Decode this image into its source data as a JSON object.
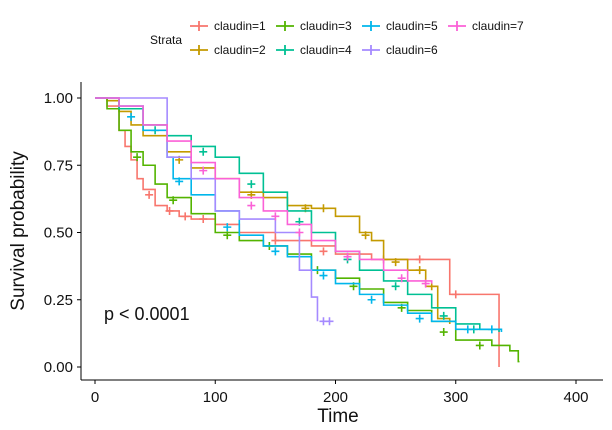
{
  "chart_data": {
    "type": "line",
    "subtype": "kaplan-meier",
    "title": "",
    "xlabel": "Time",
    "ylabel": "Survival probability",
    "xlim": [
      0,
      400
    ],
    "ylim": [
      0,
      1
    ],
    "x_ticks": [
      "0",
      "100",
      "200",
      "300",
      "400"
    ],
    "y_ticks": [
      "0.00",
      "0.25",
      "0.50",
      "0.75",
      "1.00"
    ],
    "x_tick_values": [
      0,
      100,
      200,
      300,
      400
    ],
    "y_tick_values": [
      0,
      0.25,
      0.5,
      0.75,
      1.0
    ],
    "grid": false,
    "legend_title": "Strata",
    "legend_position": "top",
    "annotation": "p < 0.0001",
    "series": [
      {
        "name": "claudin=1",
        "color": "#F8766D",
        "x": [
          0,
          10,
          20,
          25,
          30,
          35,
          40,
          50,
          60,
          70,
          80,
          100,
          120,
          150,
          180,
          200,
          230,
          260,
          295,
          335,
          336
        ],
        "y": [
          1.0,
          0.97,
          0.88,
          0.82,
          0.77,
          0.7,
          0.66,
          0.6,
          0.58,
          0.56,
          0.55,
          0.53,
          0.5,
          0.47,
          0.45,
          0.42,
          0.4,
          0.4,
          0.27,
          0.27,
          0.0
        ],
        "censor_x": [
          45,
          62,
          75,
          90,
          150,
          190,
          240,
          270,
          300
        ],
        "censor_y": [
          0.64,
          0.58,
          0.56,
          0.55,
          0.47,
          0.43,
          0.4,
          0.4,
          0.27
        ]
      },
      {
        "name": "claudin=2",
        "color": "#C49A00",
        "x": [
          0,
          10,
          20,
          30,
          40,
          60,
          80,
          100,
          120,
          140,
          160,
          180,
          200,
          220,
          230,
          240,
          260,
          275,
          285,
          295
        ],
        "y": [
          1.0,
          0.99,
          0.95,
          0.9,
          0.86,
          0.8,
          0.74,
          0.7,
          0.65,
          0.63,
          0.6,
          0.59,
          0.56,
          0.5,
          0.47,
          0.4,
          0.36,
          0.3,
          0.18,
          0.16
        ],
        "censor_x": [
          70,
          130,
          175,
          190,
          225,
          250,
          270,
          280
        ],
        "censor_y": [
          0.77,
          0.64,
          0.59,
          0.59,
          0.49,
          0.39,
          0.36,
          0.3
        ]
      },
      {
        "name": "claudin=3",
        "color": "#53B400",
        "x": [
          0,
          10,
          20,
          30,
          40,
          50,
          60,
          80,
          100,
          120,
          140,
          160,
          180,
          200,
          220,
          240,
          260,
          280,
          300,
          330,
          345,
          352,
          353
        ],
        "y": [
          1.0,
          0.96,
          0.88,
          0.8,
          0.75,
          0.68,
          0.63,
          0.57,
          0.5,
          0.47,
          0.45,
          0.42,
          0.36,
          0.33,
          0.29,
          0.24,
          0.21,
          0.17,
          0.1,
          0.08,
          0.06,
          0.02,
          0.02
        ],
        "censor_x": [
          35,
          65,
          110,
          145,
          185,
          215,
          255,
          290,
          320
        ],
        "censor_y": [
          0.78,
          0.62,
          0.49,
          0.45,
          0.36,
          0.3,
          0.22,
          0.13,
          0.08
        ]
      },
      {
        "name": "claudin=4",
        "color": "#00C094",
        "x": [
          0,
          20,
          40,
          60,
          80,
          100,
          120,
          140,
          160,
          180,
          200,
          220,
          240,
          260,
          280,
          300,
          320,
          336
        ],
        "y": [
          1.0,
          0.96,
          0.9,
          0.86,
          0.82,
          0.78,
          0.72,
          0.65,
          0.58,
          0.5,
          0.43,
          0.36,
          0.32,
          0.27,
          0.22,
          0.16,
          0.14,
          0.13
        ],
        "censor_x": [
          50,
          90,
          130,
          170,
          210,
          250,
          290,
          315
        ],
        "censor_y": [
          0.88,
          0.8,
          0.68,
          0.54,
          0.4,
          0.3,
          0.19,
          0.14
        ]
      },
      {
        "name": "claudin=5",
        "color": "#00B6EB",
        "x": [
          0,
          20,
          40,
          60,
          65,
          80,
          100,
          120,
          140,
          160,
          180,
          200,
          220,
          240,
          260,
          280,
          300,
          320,
          335,
          338
        ],
        "y": [
          1.0,
          0.97,
          0.88,
          0.78,
          0.7,
          0.64,
          0.58,
          0.49,
          0.45,
          0.41,
          0.36,
          0.31,
          0.27,
          0.23,
          0.2,
          0.17,
          0.14,
          0.14,
          0.14,
          0.13
        ],
        "censor_x": [
          30,
          70,
          110,
          150,
          190,
          230,
          270,
          310,
          330
        ],
        "censor_y": [
          0.93,
          0.69,
          0.52,
          0.43,
          0.34,
          0.25,
          0.18,
          0.14,
          0.14
        ]
      },
      {
        "name": "claudin=6",
        "color": "#A58AFF",
        "x": [
          0,
          60,
          80,
          100,
          120,
          150,
          170,
          180,
          185
        ],
        "y": [
          1.0,
          0.78,
          0.7,
          0.58,
          0.55,
          0.5,
          0.36,
          0.26,
          0.17
        ],
        "censor_x": [
          190,
          195
        ],
        "censor_y": [
          0.17,
          0.17
        ]
      },
      {
        "name": "claudin=7",
        "color": "#FB61D7",
        "x": [
          0,
          20,
          40,
          60,
          80,
          100,
          120,
          140,
          160,
          180,
          200,
          220,
          240,
          260,
          280
        ],
        "y": [
          1.0,
          0.97,
          0.9,
          0.84,
          0.76,
          0.7,
          0.63,
          0.58,
          0.53,
          0.47,
          0.43,
          0.4,
          0.36,
          0.32,
          0.31
        ],
        "censor_x": [
          90,
          130,
          150,
          170,
          210,
          255,
          275
        ],
        "censor_y": [
          0.73,
          0.6,
          0.56,
          0.5,
          0.41,
          0.33,
          0.31
        ]
      }
    ]
  }
}
